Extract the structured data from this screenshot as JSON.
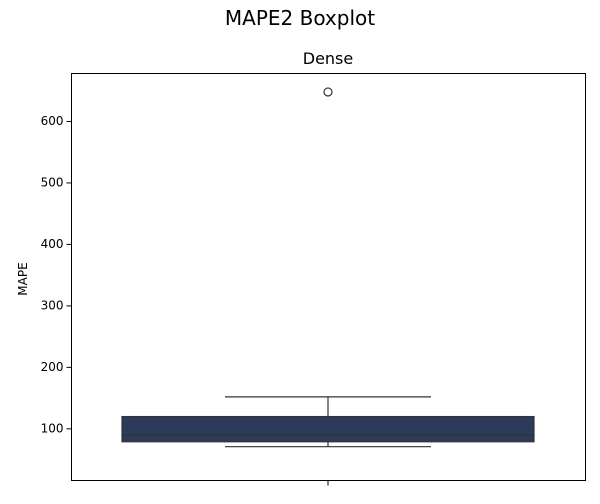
{
  "figure": {
    "suptitle": "MAPE2 Boxplot"
  },
  "chart_data": {
    "type": "box",
    "title": "Dense",
    "xlabel": "",
    "ylabel": "MAPE",
    "categories": [
      ""
    ],
    "ylim": [
      16,
      678
    ],
    "yticks": [
      100,
      200,
      300,
      400,
      500,
      600
    ],
    "grid": false,
    "box": {
      "whisker_low": 71,
      "q1": 79,
      "median": 90,
      "q3": 120,
      "whisker_high": 152,
      "outliers": [
        648
      ]
    },
    "colors": {
      "box_fill": "#2e3a5c",
      "line": "#333333",
      "axes": "#000000"
    }
  }
}
